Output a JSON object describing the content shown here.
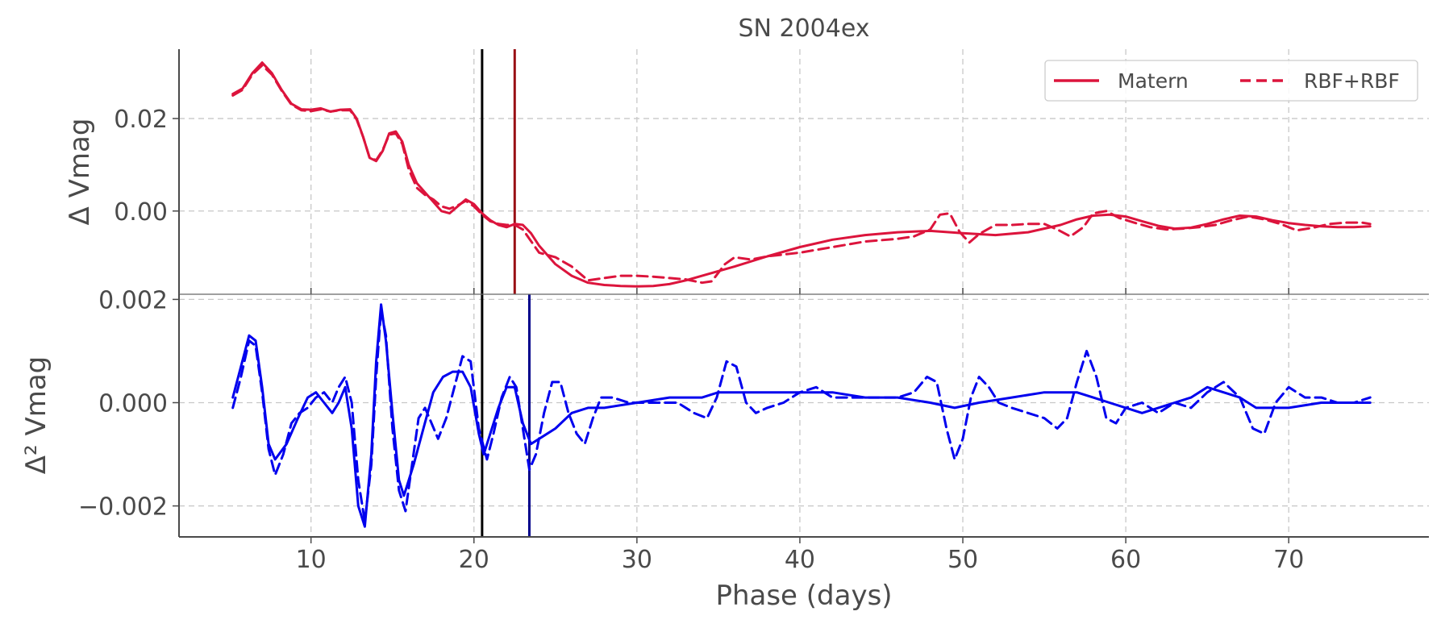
{
  "chart_data": [
    {
      "type": "line",
      "title": "SN 2004ex",
      "ylabel": "Δ Vmag",
      "xlabel": "",
      "xlim": [
        1.9,
        78.6
      ],
      "ylim": [
        -0.018,
        0.035
      ],
      "yticks": [
        0.02,
        0.0
      ],
      "ytick_labels": [
        "0.02",
        "0.00"
      ],
      "xticks": [
        10,
        20,
        30,
        40,
        50,
        60,
        70
      ],
      "grid": true,
      "legend": {
        "placement": "top-right",
        "entries": [
          "Matern",
          "RBF+RBF"
        ]
      },
      "vlines": [
        {
          "x": 20.5,
          "color": "#000000"
        },
        {
          "x": 22.5,
          "color": "#990f14"
        }
      ],
      "series": [
        {
          "name": "Matern",
          "style": "solid",
          "color": "#dc143c",
          "x": [
            5.2,
            5.8,
            6.4,
            7.0,
            7.6,
            8.2,
            8.8,
            9.4,
            10.0,
            10.6,
            11.2,
            11.8,
            12.4,
            12.8,
            13.2,
            13.6,
            14.0,
            14.4,
            14.8,
            15.2,
            15.6,
            16.0,
            16.5,
            17.0,
            17.5,
            18.0,
            18.5,
            19.0,
            19.5,
            20.0,
            20.5,
            21.0,
            21.5,
            22.0,
            22.5,
            23.0,
            23.5,
            24.0,
            25.0,
            26.0,
            27.0,
            28.0,
            29.0,
            30.0,
            31.0,
            32.0,
            33.0,
            34.0,
            35.0,
            36.0,
            38.0,
            40.0,
            42.0,
            44.0,
            46.0,
            48.0,
            50.0,
            52.0,
            54.0,
            56.0,
            57.0,
            58.0,
            59.0,
            60.0,
            61.0,
            62.0,
            63.0,
            64.0,
            65.0,
            66.0,
            67.0,
            68.0,
            69.0,
            70.0,
            71.0,
            72.0,
            73.0,
            74.0,
            75.0
          ],
          "y": [
            0.0253,
            0.0265,
            0.0298,
            0.0321,
            0.0298,
            0.0262,
            0.0232,
            0.022,
            0.0219,
            0.0222,
            0.0215,
            0.0219,
            0.022,
            0.02,
            0.016,
            0.0115,
            0.0108,
            0.013,
            0.0168,
            0.0172,
            0.015,
            0.01,
            0.006,
            0.004,
            0.002,
            0.0,
            -0.0005,
            0.001,
            0.0025,
            0.0015,
            -0.0005,
            -0.002,
            -0.003,
            -0.0035,
            -0.0028,
            -0.003,
            -0.0048,
            -0.0075,
            -0.0115,
            -0.014,
            -0.0155,
            -0.016,
            -0.0162,
            -0.0163,
            -0.0162,
            -0.0158,
            -0.015,
            -0.014,
            -0.013,
            -0.012,
            -0.0098,
            -0.0078,
            -0.0062,
            -0.0052,
            -0.0046,
            -0.0043,
            -0.0048,
            -0.0052,
            -0.0046,
            -0.003,
            -0.0018,
            -0.001,
            -0.0008,
            -0.0012,
            -0.0022,
            -0.0032,
            -0.0038,
            -0.0036,
            -0.0028,
            -0.0018,
            -0.001,
            -0.0012,
            -0.002,
            -0.0026,
            -0.003,
            -0.0033,
            -0.0035,
            -0.0035,
            -0.0033
          ]
        },
        {
          "name": "RBF+RBF",
          "style": "dashed",
          "color": "#dc143c",
          "x": [
            5.2,
            5.8,
            6.4,
            7.0,
            7.6,
            8.2,
            8.8,
            9.4,
            10.0,
            10.6,
            11.2,
            11.8,
            12.4,
            12.8,
            13.2,
            13.6,
            14.0,
            14.4,
            14.8,
            15.2,
            15.6,
            16.0,
            16.5,
            17.0,
            17.5,
            18.0,
            18.5,
            19.0,
            19.5,
            20.0,
            20.5,
            21.0,
            21.5,
            22.0,
            22.5,
            23.0,
            24.0,
            25.0,
            26.0,
            27.0,
            28.0,
            29.0,
            30.0,
            31.0,
            32.0,
            33.0,
            34.0,
            34.6,
            35.4,
            36.0,
            37.0,
            38.0,
            40.0,
            42.0,
            44.0,
            46.0,
            47.0,
            48.0,
            48.6,
            49.2,
            49.8,
            50.4,
            51.0,
            52.0,
            53.0,
            54.0,
            55.0,
            55.8,
            56.6,
            57.4,
            58.0,
            58.8,
            59.6,
            60.5,
            61.5,
            62.5,
            63.5,
            64.5,
            65.5,
            66.5,
            67.5,
            68.5,
            69.5,
            70.5,
            71.5,
            72.5,
            73.5,
            74.5,
            75.0
          ],
          "y": [
            0.025,
            0.0262,
            0.0295,
            0.0315,
            0.0295,
            0.026,
            0.023,
            0.0218,
            0.0216,
            0.022,
            0.0215,
            0.0218,
            0.0218,
            0.0198,
            0.016,
            0.0115,
            0.011,
            0.0132,
            0.0165,
            0.0168,
            0.0145,
            0.009,
            0.005,
            0.0035,
            0.0025,
            0.001,
            0.0005,
            0.0012,
            0.0022,
            0.001,
            -0.0008,
            -0.0022,
            -0.0028,
            -0.003,
            -0.003,
            -0.004,
            -0.009,
            -0.01,
            -0.012,
            -0.015,
            -0.0145,
            -0.014,
            -0.014,
            -0.0142,
            -0.0145,
            -0.0148,
            -0.0155,
            -0.0152,
            -0.0115,
            -0.01,
            -0.0105,
            -0.0098,
            -0.009,
            -0.0078,
            -0.0066,
            -0.006,
            -0.0055,
            -0.004,
            -0.0008,
            -0.0005,
            -0.0045,
            -0.0068,
            -0.005,
            -0.003,
            -0.003,
            -0.0028,
            -0.0028,
            -0.004,
            -0.0055,
            -0.0035,
            -0.0005,
            0.0,
            -0.0015,
            -0.0025,
            -0.0035,
            -0.004,
            -0.0038,
            -0.0035,
            -0.003,
            -0.002,
            -0.0012,
            -0.0018,
            -0.0028,
            -0.0042,
            -0.0036,
            -0.0028,
            -0.0025,
            -0.0025,
            -0.0028
          ]
        }
      ]
    },
    {
      "type": "line",
      "title": "",
      "ylabel": "Δ² Vmag",
      "xlabel": "Phase (days)",
      "xlim": [
        1.9,
        78.6
      ],
      "ylim": [
        -0.0026,
        0.0021
      ],
      "yticks": [
        0.002,
        0.0,
        -0.002
      ],
      "ytick_labels": [
        "0.002",
        "0.000",
        "−0.002"
      ],
      "xticks": [
        10,
        20,
        30,
        40,
        50,
        60,
        70
      ],
      "xtick_labels": [
        "10",
        "20",
        "30",
        "40",
        "50",
        "60",
        "70"
      ],
      "grid": true,
      "vlines": [
        {
          "x": 20.5,
          "color": "#000000"
        },
        {
          "x": 23.4,
          "color": "#00008b"
        }
      ],
      "series": [
        {
          "name": "Matern",
          "style": "solid",
          "color": "#0000ee",
          "x": [
            5.2,
            5.7,
            6.2,
            6.6,
            7.0,
            7.4,
            7.8,
            8.5,
            9.2,
            9.8,
            10.3,
            10.8,
            11.3,
            11.7,
            12.1,
            12.5,
            12.9,
            13.3,
            13.7,
            14.0,
            14.3,
            14.6,
            15.0,
            15.4,
            15.7,
            16.3,
            16.9,
            17.5,
            18.1,
            18.7,
            19.3,
            19.8,
            20.3,
            20.6,
            21.0,
            21.5,
            22.0,
            22.5,
            23.0,
            23.5,
            24.0,
            25.0,
            26.0,
            27.0,
            28.0,
            30.0,
            32.0,
            34.0,
            35.0,
            36.0,
            38.0,
            40.0,
            42.0,
            44.0,
            46.0,
            48.0,
            49.5,
            51.0,
            53.0,
            55.0,
            57.0,
            58.0,
            59.0,
            60.0,
            61.0,
            62.0,
            63.0,
            64.0,
            65.0,
            66.0,
            67.0,
            68.0,
            69.0,
            70.0,
            72.0,
            74.0,
            75.0
          ],
          "y": [
            0.0001,
            0.0007,
            0.0013,
            0.0012,
            0.0003,
            -0.0008,
            -0.0011,
            -0.0008,
            -0.0003,
            0.0001,
            0.0002,
            0.0,
            -0.0002,
            0.0,
            0.0003,
            -0.0005,
            -0.002,
            -0.0024,
            -0.001,
            0.0008,
            0.0019,
            0.0012,
            -0.0002,
            -0.0015,
            -0.0018,
            -0.0012,
            -0.0005,
            0.0002,
            0.0005,
            0.0006,
            0.0006,
            0.0003,
            -0.0006,
            -0.001,
            -0.0006,
            -0.0001,
            0.0003,
            0.0003,
            -0.0004,
            -0.0008,
            -0.0007,
            -0.0005,
            -0.0002,
            -0.0001,
            -0.0001,
            0.0,
            0.0001,
            0.0001,
            0.0002,
            0.0002,
            0.0002,
            0.0002,
            0.0002,
            0.0001,
            0.0001,
            0.0,
            -0.0001,
            0.0,
            0.0001,
            0.0002,
            0.0002,
            0.0001,
            0.0,
            -0.0001,
            -0.0002,
            -0.0001,
            0.0,
            0.0001,
            0.0003,
            0.0002,
            0.0001,
            -0.0001,
            -0.0001,
            -0.0001,
            0.0,
            0.0,
            0.0
          ]
        },
        {
          "name": "RBF+RBF",
          "style": "dashed",
          "color": "#0000ee",
          "x": [
            5.2,
            5.7,
            6.2,
            6.6,
            7.0,
            7.4,
            7.8,
            8.3,
            8.8,
            9.3,
            9.8,
            10.3,
            10.8,
            11.3,
            11.7,
            12.1,
            12.5,
            12.9,
            13.3,
            13.7,
            14.0,
            14.3,
            14.6,
            15.0,
            15.4,
            15.8,
            16.2,
            16.6,
            17.0,
            17.4,
            17.8,
            18.3,
            18.8,
            19.3,
            19.8,
            20.3,
            20.8,
            21.2,
            21.7,
            22.2,
            22.6,
            23.0,
            23.4,
            23.8,
            24.3,
            24.8,
            25.3,
            25.8,
            26.3,
            26.8,
            27.3,
            27.8,
            28.5,
            29.5,
            31.0,
            32.5,
            33.5,
            34.3,
            34.9,
            35.5,
            36.1,
            36.7,
            37.3,
            38.0,
            39.0,
            40.0,
            41.0,
            42.0,
            43.0,
            44.0,
            45.0,
            46.0,
            47.0,
            47.8,
            48.4,
            49.0,
            49.5,
            50.0,
            50.5,
            51.0,
            51.6,
            52.2,
            53.0,
            54.0,
            55.0,
            55.8,
            56.4,
            57.0,
            57.6,
            58.2,
            58.8,
            59.4,
            60.0,
            61.0,
            62.0,
            63.0,
            64.0,
            65.0,
            66.0,
            67.0,
            67.8,
            68.5,
            69.2,
            70.0,
            71.0,
            72.0,
            73.0,
            74.0,
            75.0
          ],
          "y": [
            -0.0001,
            0.0005,
            0.0012,
            0.0011,
            0.0002,
            -0.0009,
            -0.0014,
            -0.001,
            -0.0004,
            -0.0002,
            -0.0001,
            0.0001,
            0.0002,
            0.0,
            0.0003,
            0.0005,
            0.0,
            -0.0015,
            -0.0023,
            -0.0012,
            0.0005,
            0.0018,
            0.0013,
            -0.0005,
            -0.0017,
            -0.0021,
            -0.0012,
            -0.0003,
            -0.0001,
            -0.0004,
            -0.0007,
            -0.0003,
            0.0003,
            0.0009,
            0.0008,
            -0.0005,
            -0.0011,
            -0.0006,
            0.0001,
            0.0005,
            0.0003,
            -0.0005,
            -0.0013,
            -0.001,
            -0.0002,
            0.0004,
            0.0004,
            -0.0002,
            -0.0006,
            -0.0008,
            -0.0003,
            0.0001,
            0.0001,
            0.0,
            0.0,
            0.0,
            -0.0002,
            -0.0003,
            0.0001,
            0.0008,
            0.0007,
            0.0,
            -0.0002,
            -0.0001,
            0.0,
            0.0002,
            0.0003,
            0.0001,
            0.0001,
            0.0001,
            0.0001,
            0.0001,
            0.0002,
            0.0005,
            0.0004,
            -0.0005,
            -0.0011,
            -0.0007,
            0.0001,
            0.0005,
            0.0003,
            0.0,
            -0.0001,
            -0.0002,
            -0.0003,
            -0.0005,
            -0.0003,
            0.0004,
            0.001,
            0.0005,
            -0.0003,
            -0.0004,
            -0.0001,
            0.0,
            -0.0002,
            0.0,
            -0.0001,
            0.0002,
            0.0004,
            0.0001,
            -0.0005,
            -0.0006,
            0.0,
            0.0003,
            0.0001,
            0.0001,
            0.0,
            0.0,
            0.0001
          ]
        }
      ]
    }
  ]
}
